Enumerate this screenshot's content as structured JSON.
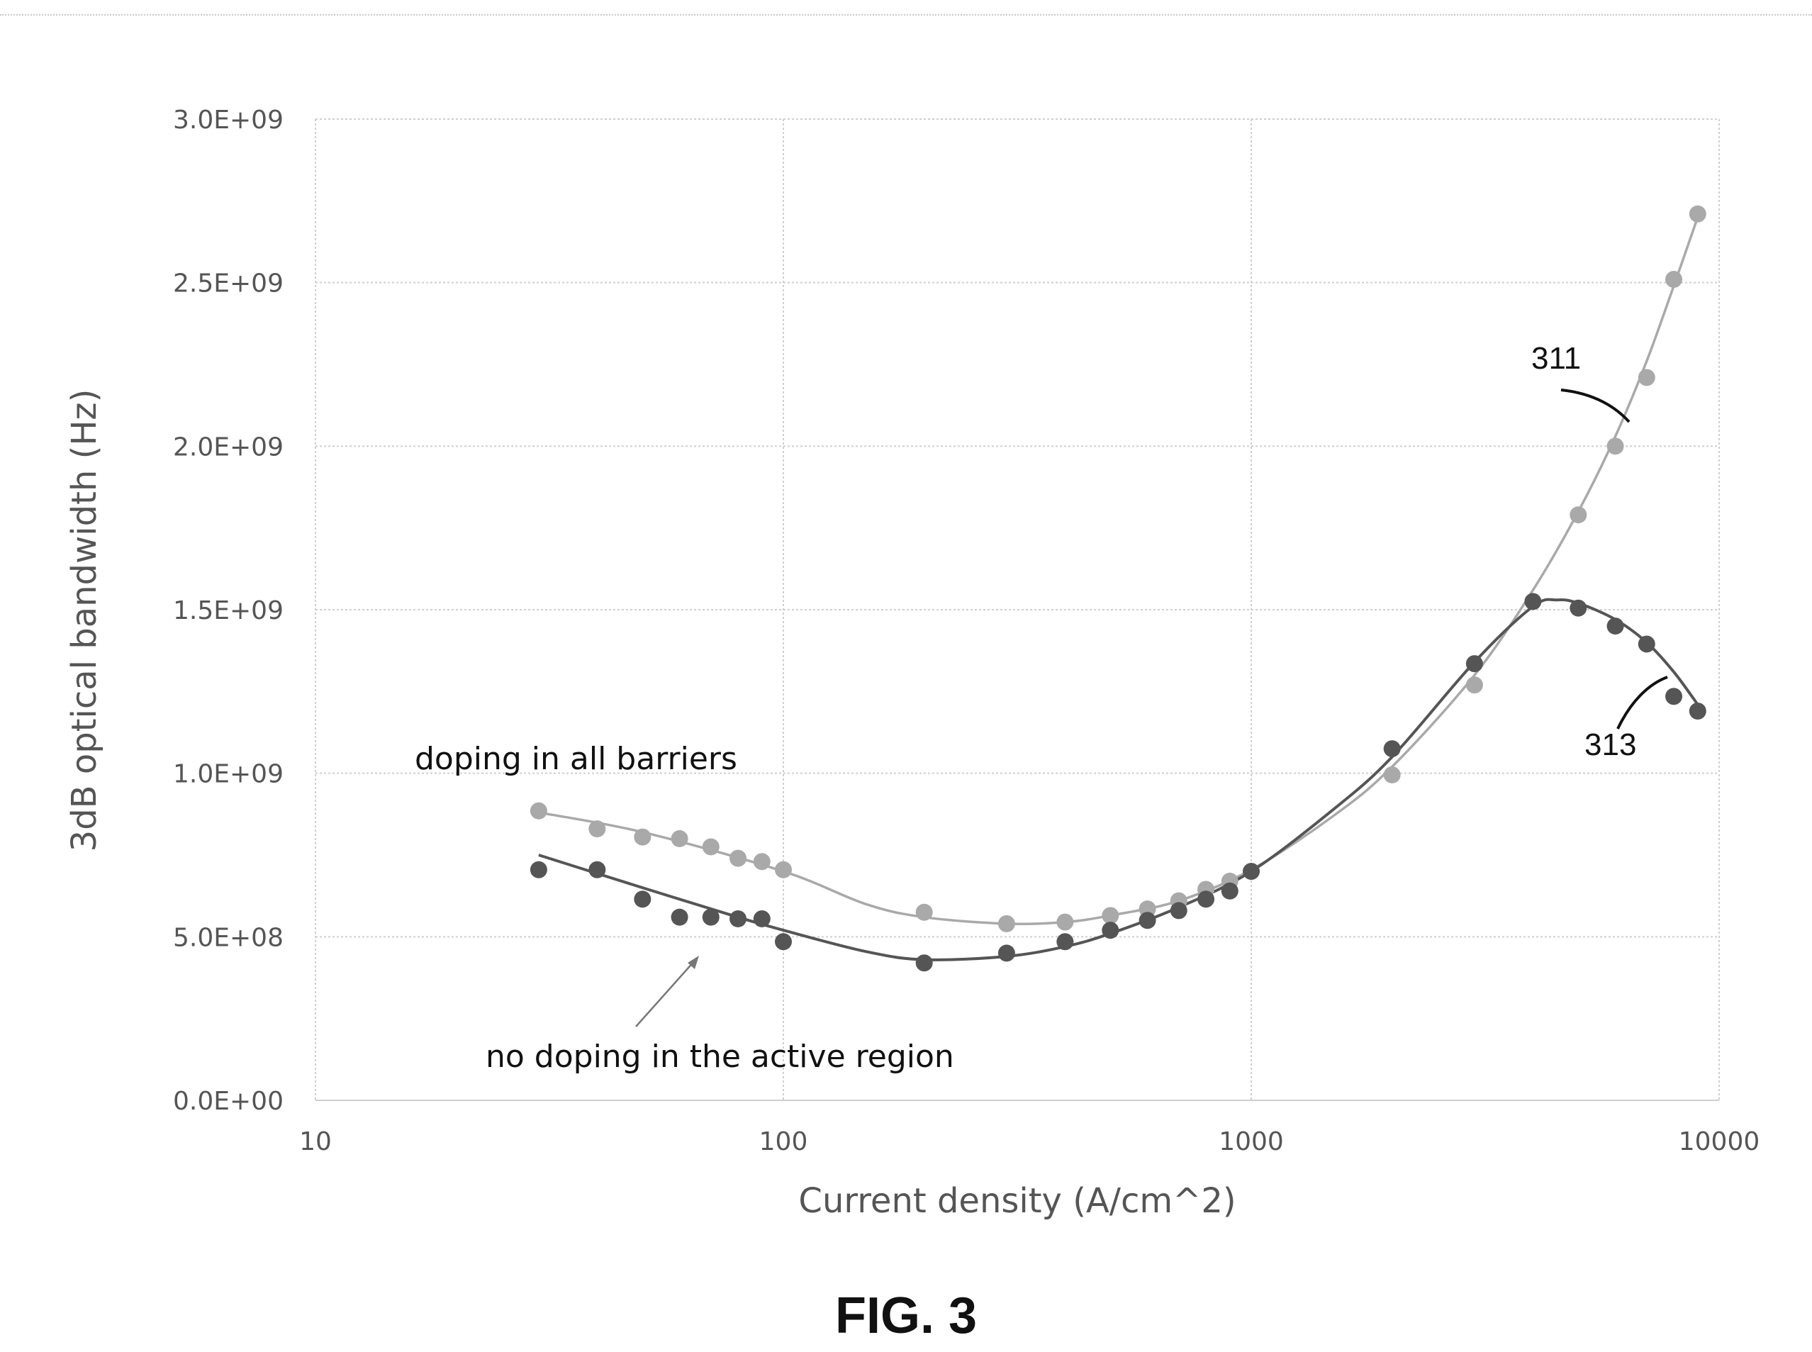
{
  "chart_data": {
    "type": "scatter",
    "x_scale": "log",
    "xlabel": "Current density (A/cm^2)",
    "ylabel": "3dB optical bandwidth (Hz)",
    "xlim": [
      10,
      10000
    ],
    "ylim": [
      0,
      3000000000
    ],
    "x_ticks": [
      10,
      100,
      1000,
      10000
    ],
    "x_tick_labels": [
      "10",
      "100",
      "1000",
      "10000"
    ],
    "y_ticks": [
      0,
      500000000,
      1000000000,
      1500000000,
      2000000000,
      2500000000,
      3000000000
    ],
    "y_tick_labels": [
      "0.0E+00",
      "5.0E+08",
      "1.0E+09",
      "1.5E+09",
      "2.0E+09",
      "2.5E+09",
      "3.0E+09"
    ],
    "grid": true,
    "series": [
      {
        "name": "doping in all barriers",
        "ref": "311",
        "color": "#a9a9a9",
        "points": [
          [
            30,
            885000000
          ],
          [
            40,
            830000000
          ],
          [
            50,
            805000000
          ],
          [
            60,
            800000000
          ],
          [
            70,
            775000000
          ],
          [
            80,
            740000000
          ],
          [
            90,
            730000000
          ],
          [
            100,
            705000000
          ],
          [
            200,
            575000000
          ],
          [
            300,
            540000000
          ],
          [
            400,
            545000000
          ],
          [
            500,
            565000000
          ],
          [
            600,
            585000000
          ],
          [
            700,
            610000000
          ],
          [
            800,
            645000000
          ],
          [
            900,
            670000000
          ],
          [
            1000,
            700000000
          ],
          [
            2000,
            995000000
          ],
          [
            3000,
            1270000000
          ],
          [
            5000,
            1790000000
          ],
          [
            6000,
            2000000000
          ],
          [
            7000,
            2210000000
          ],
          [
            8000,
            2510000000
          ],
          [
            9000,
            2710000000
          ]
        ],
        "fit": [
          [
            30,
            880000000
          ],
          [
            50,
            820000000
          ],
          [
            100,
            700000000
          ],
          [
            150,
            600000000
          ],
          [
            200,
            560000000
          ],
          [
            300,
            540000000
          ],
          [
            400,
            545000000
          ],
          [
            500,
            565000000
          ],
          [
            700,
            610000000
          ],
          [
            1000,
            705000000
          ],
          [
            1500,
            870000000
          ],
          [
            2000,
            1020000000
          ],
          [
            3000,
            1300000000
          ],
          [
            4000,
            1560000000
          ],
          [
            5000,
            1800000000
          ],
          [
            6000,
            2030000000
          ],
          [
            7000,
            2260000000
          ],
          [
            8000,
            2490000000
          ],
          [
            9000,
            2700000000
          ]
        ]
      },
      {
        "name": "no doping in the active region",
        "ref": "313",
        "color": "#555555",
        "points": [
          [
            30,
            705000000
          ],
          [
            40,
            705000000
          ],
          [
            50,
            615000000
          ],
          [
            60,
            560000000
          ],
          [
            70,
            560000000
          ],
          [
            80,
            555000000
          ],
          [
            90,
            555000000
          ],
          [
            100,
            485000000
          ],
          [
            200,
            420000000
          ],
          [
            300,
            450000000
          ],
          [
            400,
            485000000
          ],
          [
            500,
            520000000
          ],
          [
            600,
            550000000
          ],
          [
            700,
            580000000
          ],
          [
            800,
            615000000
          ],
          [
            900,
            640000000
          ],
          [
            1000,
            700000000
          ],
          [
            2000,
            1075000000
          ],
          [
            3000,
            1335000000
          ],
          [
            4000,
            1525000000
          ],
          [
            5000,
            1505000000
          ],
          [
            6000,
            1450000000
          ],
          [
            7000,
            1395000000
          ],
          [
            8000,
            1235000000
          ],
          [
            9000,
            1190000000
          ]
        ],
        "fit": [
          [
            30,
            750000000
          ],
          [
            50,
            650000000
          ],
          [
            80,
            560000000
          ],
          [
            100,
            520000000
          ],
          [
            150,
            455000000
          ],
          [
            200,
            430000000
          ],
          [
            300,
            440000000
          ],
          [
            400,
            470000000
          ],
          [
            500,
            510000000
          ],
          [
            700,
            590000000
          ],
          [
            1000,
            700000000
          ],
          [
            1500,
            890000000
          ],
          [
            2000,
            1050000000
          ],
          [
            3000,
            1340000000
          ],
          [
            4000,
            1510000000
          ],
          [
            4500,
            1530000000
          ],
          [
            5000,
            1520000000
          ],
          [
            6000,
            1470000000
          ],
          [
            7000,
            1400000000
          ],
          [
            8000,
            1310000000
          ],
          [
            9000,
            1210000000
          ]
        ]
      }
    ],
    "annotations": {
      "doping_label": "doping in all barriers",
      "no_doping_label": "no doping in the active region",
      "ref_311": "311",
      "ref_313": "313"
    }
  },
  "caption": "FIG. 3"
}
